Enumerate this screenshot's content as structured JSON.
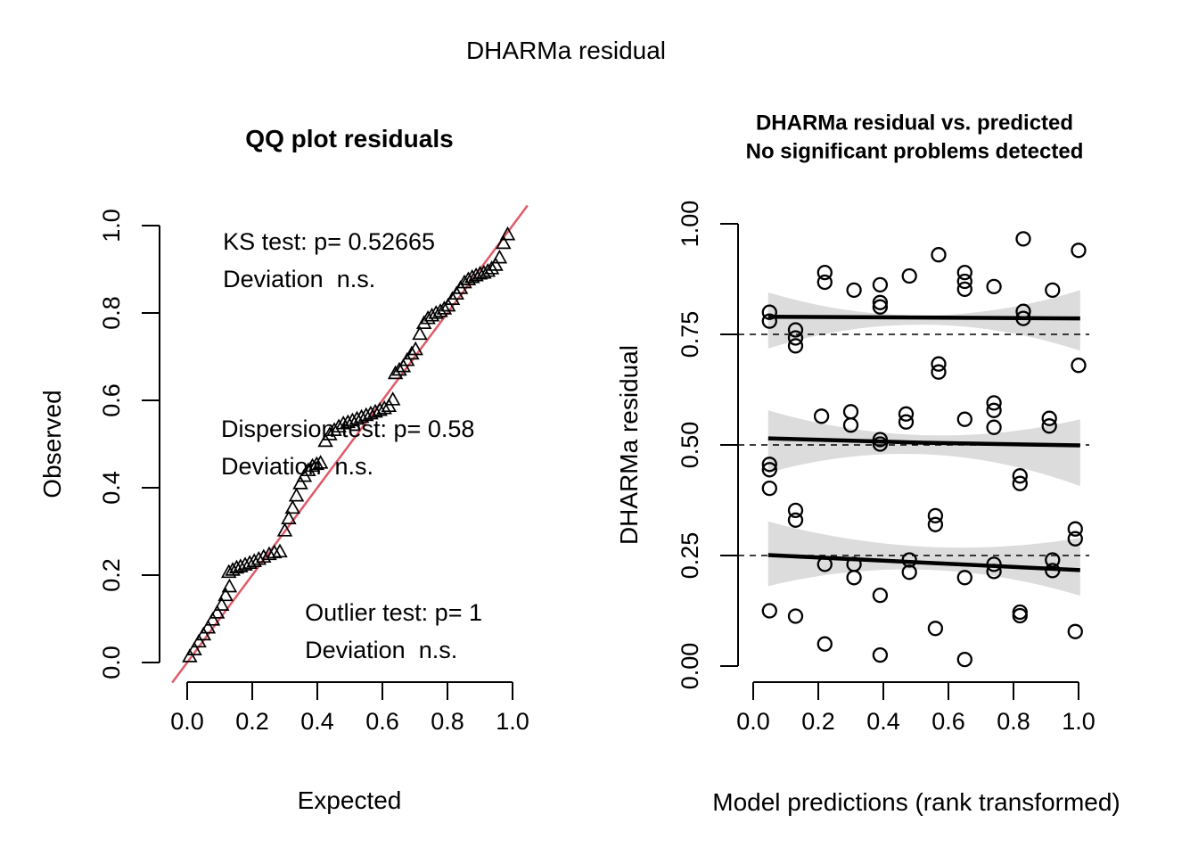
{
  "page_title": "DHARMa residual",
  "colors": {
    "qq_reference_line": "#e05a69",
    "confidence_band": "#dcdcdc",
    "foreground": "#000000",
    "background": "#ffffff"
  },
  "chart_data": [
    {
      "type": "scatter",
      "name": "qq-plot",
      "title": "QQ plot residuals",
      "xlabel": "Expected",
      "ylabel": "Observed",
      "xlim": [
        0,
        1
      ],
      "ylim": [
        0,
        1
      ],
      "marker": "open-triangle",
      "grid": false,
      "ticks": {
        "x": {
          "values": [
            0,
            0.2,
            0.4,
            0.6,
            0.8,
            1.0
          ],
          "labels": [
            "0.0",
            "0.2",
            "0.4",
            "0.6",
            "0.8",
            "1.0"
          ]
        },
        "y": {
          "values": [
            0,
            0.2,
            0.4,
            0.6,
            0.8,
            1.0
          ],
          "labels": [
            "0.0",
            "0.2",
            "0.4",
            "0.6",
            "0.8",
            "1.0"
          ]
        }
      },
      "reference_line": {
        "from": [
          -0.046,
          -0.046
        ],
        "to": [
          1.046,
          1.046
        ]
      },
      "annotations": [
        {
          "x": 0.11,
          "y": 0.94,
          "lines": [
            "KS test: p= 0.52665",
            "Deviation  n.s."
          ]
        },
        {
          "x": 0.104,
          "y": 0.512,
          "lines": [
            "Dispersion test: p= 0.58",
            "Deviation  n.s."
          ]
        },
        {
          "x": 0.362,
          "y": 0.092,
          "lines": [
            "Outlier test: p= 1",
            "Deviation  n.s."
          ]
        }
      ],
      "points": [
        [
          0.008,
          0.012
        ],
        [
          0.022,
          0.028
        ],
        [
          0.036,
          0.046
        ],
        [
          0.05,
          0.062
        ],
        [
          0.064,
          0.078
        ],
        [
          0.078,
          0.096
        ],
        [
          0.092,
          0.112
        ],
        [
          0.106,
          0.13
        ],
        [
          0.118,
          0.152
        ],
        [
          0.13,
          0.172
        ],
        [
          0.128,
          0.205
        ],
        [
          0.14,
          0.21
        ],
        [
          0.152,
          0.215
        ],
        [
          0.164,
          0.218
        ],
        [
          0.178,
          0.222
        ],
        [
          0.192,
          0.226
        ],
        [
          0.206,
          0.23
        ],
        [
          0.22,
          0.235
        ],
        [
          0.235,
          0.24
        ],
        [
          0.252,
          0.246
        ],
        [
          0.268,
          0.25
        ],
        [
          0.285,
          0.252
        ],
        [
          0.3,
          0.3
        ],
        [
          0.312,
          0.328
        ],
        [
          0.324,
          0.352
        ],
        [
          0.336,
          0.38
        ],
        [
          0.348,
          0.408
        ],
        [
          0.36,
          0.425
        ],
        [
          0.372,
          0.438
        ],
        [
          0.385,
          0.448
        ],
        [
          0.398,
          0.452
        ],
        [
          0.41,
          0.455
        ],
        [
          0.425,
          0.505
        ],
        [
          0.438,
          0.52
        ],
        [
          0.452,
          0.53
        ],
        [
          0.466,
          0.538
        ],
        [
          0.48,
          0.545
        ],
        [
          0.494,
          0.548
        ],
        [
          0.508,
          0.552
        ],
        [
          0.522,
          0.556
        ],
        [
          0.536,
          0.56
        ],
        [
          0.55,
          0.564
        ],
        [
          0.564,
          0.568
        ],
        [
          0.578,
          0.572
        ],
        [
          0.592,
          0.576
        ],
        [
          0.606,
          0.58
        ],
        [
          0.62,
          0.585
        ],
        [
          0.632,
          0.6
        ],
        [
          0.64,
          0.66
        ],
        [
          0.652,
          0.668
        ],
        [
          0.664,
          0.676
        ],
        [
          0.676,
          0.69
        ],
        [
          0.69,
          0.705
        ],
        [
          0.702,
          0.715
        ],
        [
          0.715,
          0.75
        ],
        [
          0.728,
          0.775
        ],
        [
          0.74,
          0.786
        ],
        [
          0.752,
          0.792
        ],
        [
          0.765,
          0.798
        ],
        [
          0.778,
          0.802
        ],
        [
          0.79,
          0.808
        ],
        [
          0.802,
          0.815
        ],
        [
          0.815,
          0.83
        ],
        [
          0.828,
          0.842
        ],
        [
          0.84,
          0.855
        ],
        [
          0.852,
          0.868
        ],
        [
          0.864,
          0.875
        ],
        [
          0.876,
          0.88
        ],
        [
          0.888,
          0.884
        ],
        [
          0.9,
          0.888
        ],
        [
          0.912,
          0.89
        ],
        [
          0.924,
          0.894
        ],
        [
          0.936,
          0.9
        ],
        [
          0.948,
          0.908
        ],
        [
          0.96,
          0.925
        ],
        [
          0.972,
          0.958
        ],
        [
          0.985,
          0.978
        ]
      ]
    },
    {
      "type": "scatter",
      "name": "residual-vs-predicted",
      "title": "DHARMa residual vs. predicted",
      "subtitle": "No significant problems detected",
      "xlabel": "Model predictions (rank transformed)",
      "ylabel": "DHARMa residual",
      "xlim": [
        0,
        1
      ],
      "ylim": [
        0,
        1
      ],
      "marker": "open-circle",
      "grid": false,
      "ticks": {
        "x": {
          "values": [
            0,
            0.2,
            0.4,
            0.6,
            0.8,
            1.0
          ],
          "labels": [
            "0.0",
            "0.2",
            "0.4",
            "0.6",
            "0.8",
            "1.0"
          ]
        },
        "y": {
          "values": [
            0,
            0.25,
            0.5,
            0.75,
            1.0
          ],
          "labels": [
            "0.00",
            "0.25",
            "0.50",
            "0.75",
            "1.00"
          ]
        }
      },
      "dashed_hlines": [
        0.25,
        0.5,
        0.75
      ],
      "quantile_lines": [
        {
          "x": [
            0.046,
            1.005
          ],
          "y": [
            0.79,
            0.786
          ]
        },
        {
          "x": [
            0.046,
            0.52,
            1.005
          ],
          "y": [
            0.515,
            0.505,
            0.499
          ]
        },
        {
          "x": [
            0.046,
            1.005
          ],
          "y": [
            0.251,
            0.217
          ]
        }
      ],
      "confidence_bands": [
        {
          "x_range": [
            0.046,
            1.005
          ],
          "upper": [
            0.845,
            0.793,
            0.85
          ],
          "lower": [
            0.718,
            0.772,
            0.713
          ]
        },
        {
          "x_range": [
            0.046,
            1.005
          ],
          "upper": [
            0.578,
            0.522,
            0.558
          ],
          "lower": [
            0.437,
            0.479,
            0.407
          ]
        },
        {
          "x_range": [
            0.046,
            1.005
          ],
          "upper": [
            0.327,
            0.27,
            0.29
          ],
          "lower": [
            0.181,
            0.218,
            0.159
          ]
        }
      ],
      "points": [
        [
          0.05,
          0.8
        ],
        [
          0.05,
          0.78
        ],
        [
          0.13,
          0.76
        ],
        [
          0.13,
          0.742
        ],
        [
          0.13,
          0.724
        ],
        [
          0.22,
          0.89
        ],
        [
          0.22,
          0.868
        ],
        [
          0.31,
          0.85
        ],
        [
          0.39,
          0.862
        ],
        [
          0.39,
          0.822
        ],
        [
          0.39,
          0.812
        ],
        [
          0.48,
          0.882
        ],
        [
          0.57,
          0.93
        ],
        [
          0.57,
          0.683
        ],
        [
          0.57,
          0.665
        ],
        [
          0.65,
          0.89
        ],
        [
          0.65,
          0.87
        ],
        [
          0.65,
          0.852
        ],
        [
          0.74,
          0.858
        ],
        [
          0.83,
          0.966
        ],
        [
          0.83,
          0.802
        ],
        [
          0.83,
          0.786
        ],
        [
          0.92,
          0.85
        ],
        [
          1.0,
          0.94
        ],
        [
          1.0,
          0.68
        ],
        [
          0.05,
          0.456
        ],
        [
          0.05,
          0.444
        ],
        [
          0.05,
          0.402
        ],
        [
          0.13,
          0.352
        ],
        [
          0.13,
          0.33
        ],
        [
          0.21,
          0.565
        ],
        [
          0.3,
          0.575
        ],
        [
          0.3,
          0.545
        ],
        [
          0.39,
          0.512
        ],
        [
          0.39,
          0.502
        ],
        [
          0.47,
          0.57
        ],
        [
          0.47,
          0.552
        ],
        [
          0.56,
          0.34
        ],
        [
          0.56,
          0.32
        ],
        [
          0.65,
          0.558
        ],
        [
          0.74,
          0.595
        ],
        [
          0.74,
          0.578
        ],
        [
          0.74,
          0.54
        ],
        [
          0.82,
          0.43
        ],
        [
          0.82,
          0.413
        ],
        [
          0.91,
          0.56
        ],
        [
          0.91,
          0.543
        ],
        [
          0.99,
          0.31
        ],
        [
          0.99,
          0.288
        ],
        [
          0.22,
          0.23
        ],
        [
          0.31,
          0.23
        ],
        [
          0.31,
          0.2
        ],
        [
          0.48,
          0.24
        ],
        [
          0.48,
          0.212
        ],
        [
          0.65,
          0.2
        ],
        [
          0.74,
          0.23
        ],
        [
          0.74,
          0.214
        ],
        [
          0.92,
          0.24
        ],
        [
          0.92,
          0.216
        ],
        [
          0.39,
          0.16
        ],
        [
          0.05,
          0.125
        ],
        [
          0.13,
          0.113
        ],
        [
          0.56,
          0.085
        ],
        [
          0.82,
          0.122
        ],
        [
          0.82,
          0.114
        ],
        [
          0.99,
          0.078
        ],
        [
          0.22,
          0.05
        ],
        [
          0.39,
          0.025
        ],
        [
          0.65,
          0.015
        ]
      ]
    }
  ]
}
